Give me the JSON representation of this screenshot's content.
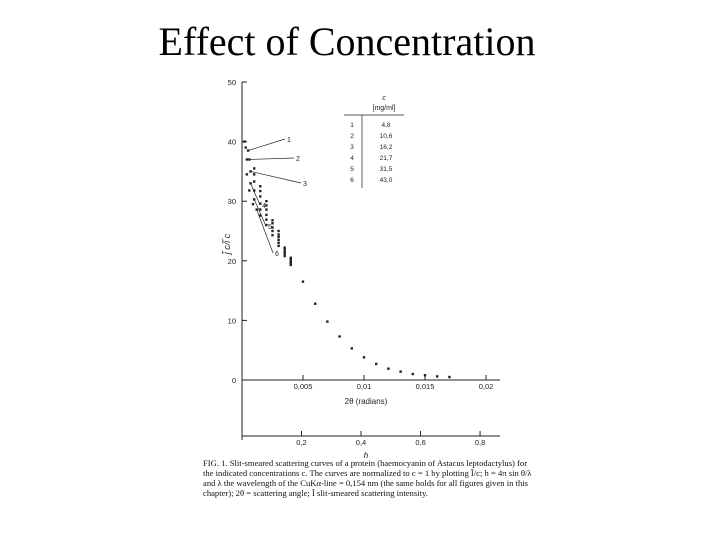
{
  "slide": {
    "title": "Effect of Concentration"
  },
  "chart_data": {
    "type": "scatter",
    "ylabel": "j̃ c/i̅ c",
    "xlabel": "2θ (radians)",
    "x2label": "h",
    "xlim": [
      0,
      0.02
    ],
    "ylim": [
      0,
      50
    ],
    "x_ticks": [
      "0,005",
      "0,01",
      "0,015",
      "0,02"
    ],
    "y_ticks": [
      "0",
      "10",
      "20",
      "30",
      "40",
      "50"
    ],
    "h_ticks": [
      "0,2",
      "0,4",
      "0,6",
      "0,8"
    ],
    "legend_table": {
      "header_symbol": "c",
      "header_unit": "[mg/ml]",
      "rows": [
        {
          "n": "1",
          "c": "4,8"
        },
        {
          "n": "2",
          "c": "10,6"
        },
        {
          "n": "3",
          "c": "16,2"
        },
        {
          "n": "4",
          "c": "21,7"
        },
        {
          "n": "5",
          "c": "31,5"
        },
        {
          "n": "6",
          "c": "43,0"
        }
      ]
    },
    "series": [
      {
        "label": "1",
        "x": [
          0.0002,
          0.0005,
          0.001,
          0.0015,
          0.002,
          0.003,
          0.004,
          0.005,
          0.006,
          0.007,
          0.008,
          0.009,
          0.01,
          0.011,
          0.012,
          0.013,
          0.014,
          0.015,
          0.016,
          0.017
        ],
        "y": [
          40,
          38.5,
          35.5,
          32.5,
          30,
          25,
          20.5,
          16.5,
          12.8,
          9.8,
          7.3,
          5.3,
          3.8,
          2.7,
          1.9,
          1.4,
          1.0,
          0.8,
          0.6,
          0.5
        ]
      },
      {
        "label": "2",
        "x": [
          0.0003,
          0.0006,
          0.001,
          0.0015,
          0.002,
          0.0025,
          0.003,
          0.0035,
          0.004
        ],
        "y": [
          39,
          37,
          34.5,
          31.7,
          29.3,
          26.8,
          24.4,
          22.2,
          20.3
        ]
      },
      {
        "label": "3",
        "x": [
          0.0004,
          0.0007,
          0.001,
          0.0015,
          0.002,
          0.0025,
          0.003,
          0.0035,
          0.004
        ],
        "y": [
          37,
          35,
          33.3,
          30.8,
          28.6,
          26.3,
          24,
          21.9,
          20.1
        ]
      },
      {
        "label": "4",
        "x": [
          0.0004,
          0.0007,
          0.001,
          0.0015,
          0.002,
          0.0025,
          0.003,
          0.0035,
          0.004
        ],
        "y": [
          34.5,
          33,
          31.8,
          29.6,
          27.7,
          25.6,
          23.5,
          21.5,
          19.8
        ]
      },
      {
        "label": "5",
        "x": [
          0.0006,
          0.001,
          0.0015,
          0.002,
          0.0025,
          0.003,
          0.0035,
          0.004
        ],
        "y": [
          31.8,
          30.3,
          28.6,
          26.9,
          25,
          23,
          21.2,
          19.6
        ]
      },
      {
        "label": "6",
        "x": [
          0.0009,
          0.0012,
          0.0015,
          0.002,
          0.0025,
          0.003,
          0.0035,
          0.004
        ],
        "y": [
          29.5,
          28.6,
          27.6,
          26,
          24.3,
          22.5,
          20.8,
          19.3
        ]
      }
    ],
    "caption": "FIG. 1. Slit-smeared scattering curves of a protein (haemocyanin of Astacus leptodactylus) for the indicated concentrations c. The curves are normalized to c = 1 by plotting Ĩ/c; h = 4π sin θ/λ and λ the wavelength of the CuKα-line = 0,154 nm (the same holds for all figures given in this chapter); 2θ = scattering angle; Ĩ slit-smeared scattering intensity."
  }
}
